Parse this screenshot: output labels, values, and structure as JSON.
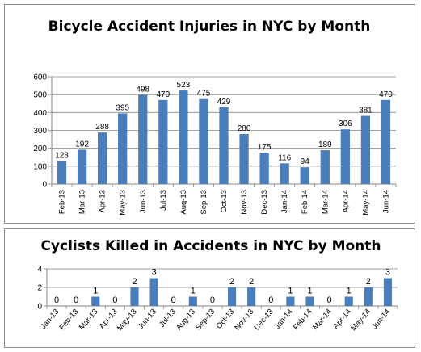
{
  "colors": {
    "bar": "#4a7ebb",
    "grid": "#868686",
    "axis": "#868686"
  },
  "chart_data": [
    {
      "type": "bar",
      "title": "Bicycle Accident Injuries in NYC by Month",
      "xlabel": "",
      "ylabel": "",
      "categories": [
        "Feb-13",
        "Mar-13",
        "Apr-13",
        "May-13",
        "Jun-13",
        "Jul-13",
        "Aug-13",
        "Sep-13",
        "Oct-13",
        "Nov-13",
        "Dec-13",
        "Jan-14",
        "Feb-14",
        "Mar-14",
        "Apr-14",
        "May-14",
        "Jun-14"
      ],
      "values": [
        128,
        192,
        288,
        395,
        498,
        470,
        523,
        475,
        429,
        280,
        175,
        116,
        94,
        189,
        306,
        381,
        470
      ],
      "ylim": [
        0,
        600
      ],
      "yticks": [
        0,
        100,
        200,
        300,
        400,
        500,
        600
      ],
      "grid": true,
      "data_labels": true
    },
    {
      "type": "bar",
      "title": "Cyclists Killed in Accidents in NYC by Month",
      "xlabel": "",
      "ylabel": "",
      "categories": [
        "Jan-13",
        "Feb-13",
        "Mar-13",
        "Apr-13",
        "May-13",
        "Jun-13",
        "Jul-13",
        "Aug-13",
        "Sep-13",
        "Oct-13",
        "Nov-13",
        "Dec-13",
        "Jan-14",
        "Feb-14",
        "Mar-14",
        "Apr-14",
        "May-14",
        "Jun-14"
      ],
      "values": [
        0,
        0,
        1,
        0,
        2,
        3,
        0,
        1,
        0,
        2,
        2,
        0,
        1,
        1,
        0,
        1,
        2,
        3
      ],
      "ylim": [
        0,
        4
      ],
      "yticks": [
        0,
        2,
        4
      ],
      "grid": true,
      "data_labels": true
    }
  ]
}
